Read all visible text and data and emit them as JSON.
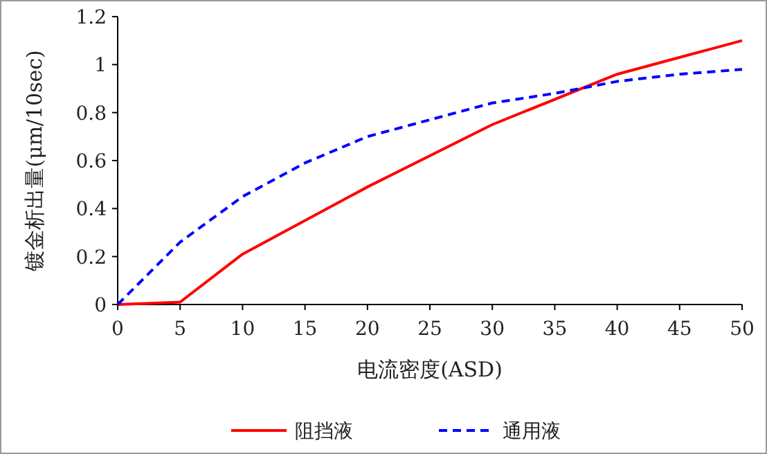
{
  "chart_data": {
    "type": "line",
    "xlabel": "电流密度(ASD)",
    "ylabel": "镀金析出量(μm/10sec)",
    "xlim": [
      0,
      50
    ],
    "ylim": [
      0,
      1.2
    ],
    "xticks": [
      0,
      5,
      10,
      15,
      20,
      25,
      30,
      35,
      40,
      45,
      50
    ],
    "yticks": [
      0,
      0.2,
      0.4,
      0.6,
      0.8,
      1,
      1.2
    ],
    "grid": false,
    "legend": "bottom",
    "marker": "none",
    "series": [
      {
        "name": "阻挡液",
        "color": "#ff0000",
        "line_style": "solid",
        "x": [
          0,
          5,
          10,
          20,
          30,
          40,
          50
        ],
        "values": [
          0,
          0.01,
          0.21,
          0.49,
          0.75,
          0.96,
          1.1
        ]
      },
      {
        "name": "通用液",
        "color": "#0000ff",
        "line_style": "dashed",
        "x": [
          0,
          5,
          10,
          15,
          20,
          25,
          30,
          35,
          40,
          45,
          50
        ],
        "values": [
          0,
          0.26,
          0.45,
          0.59,
          0.7,
          0.77,
          0.84,
          0.88,
          0.93,
          0.96,
          0.98
        ]
      }
    ]
  }
}
